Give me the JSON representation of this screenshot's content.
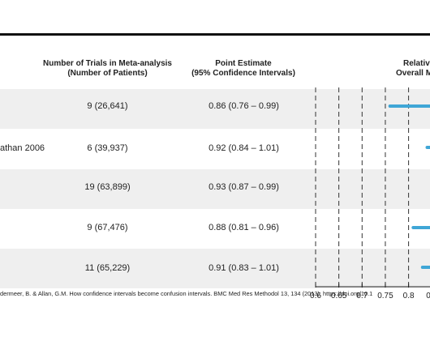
{
  "headers": {
    "trials_line1": "Number of Trials in Meta-analysis",
    "trials_line2": "(Number of Patients)",
    "estimate_line1": "Point Estimate",
    "estimate_line2": "(95% Confidence Intervals)",
    "rr_line1": "Relativ",
    "rr_line2": "Overall M"
  },
  "rows": [
    {
      "label": "",
      "trials": "9 (26,641)",
      "estimate": "0.86 (0.76 – 0.99)"
    },
    {
      "label": "athan 2006",
      "trials": "6 (39,937)",
      "estimate": "0.92 (0.84 – 1.01)"
    },
    {
      "label": "",
      "trials": "19 (63,899)",
      "estimate": "0.93 (0.87 – 0.99)"
    },
    {
      "label": "",
      "trials": "9 (67,476)",
      "estimate": "0.88 (0.81 – 0.96)"
    },
    {
      "label": "",
      "trials": "11 (65,229)",
      "estimate": "0.91 (0.83 – 1.01)"
    }
  ],
  "source": "dermeer, B. & Allan, G.M. How confidence intervals become confusion intervals. BMC Med Res Methodol 13, 134 (2013). https://doi.org/10.1",
  "chart_data": {
    "type": "forest",
    "xticks": [
      "0.6",
      "0.65",
      "0.7",
      "0.75",
      "0.8",
      "0.8"
    ],
    "xlim": [
      0.6,
      0.81
    ],
    "gridlines": [
      0.6,
      0.65,
      0.7,
      0.75,
      0.8
    ],
    "intervals": [
      {
        "point": 0.86,
        "lower": 0.76,
        "upper": 0.99
      },
      {
        "point": 0.92,
        "lower": 0.84,
        "upper": 1.01
      },
      {
        "point": 0.93,
        "lower": 0.87,
        "upper": 0.99
      },
      {
        "point": 0.88,
        "lower": 0.81,
        "upper": 0.96
      },
      {
        "point": 0.91,
        "lower": 0.83,
        "upper": 1.01
      }
    ],
    "colors": {
      "ci": "#3fa6d6",
      "grid": "#333333",
      "band": "#efefef"
    }
  }
}
